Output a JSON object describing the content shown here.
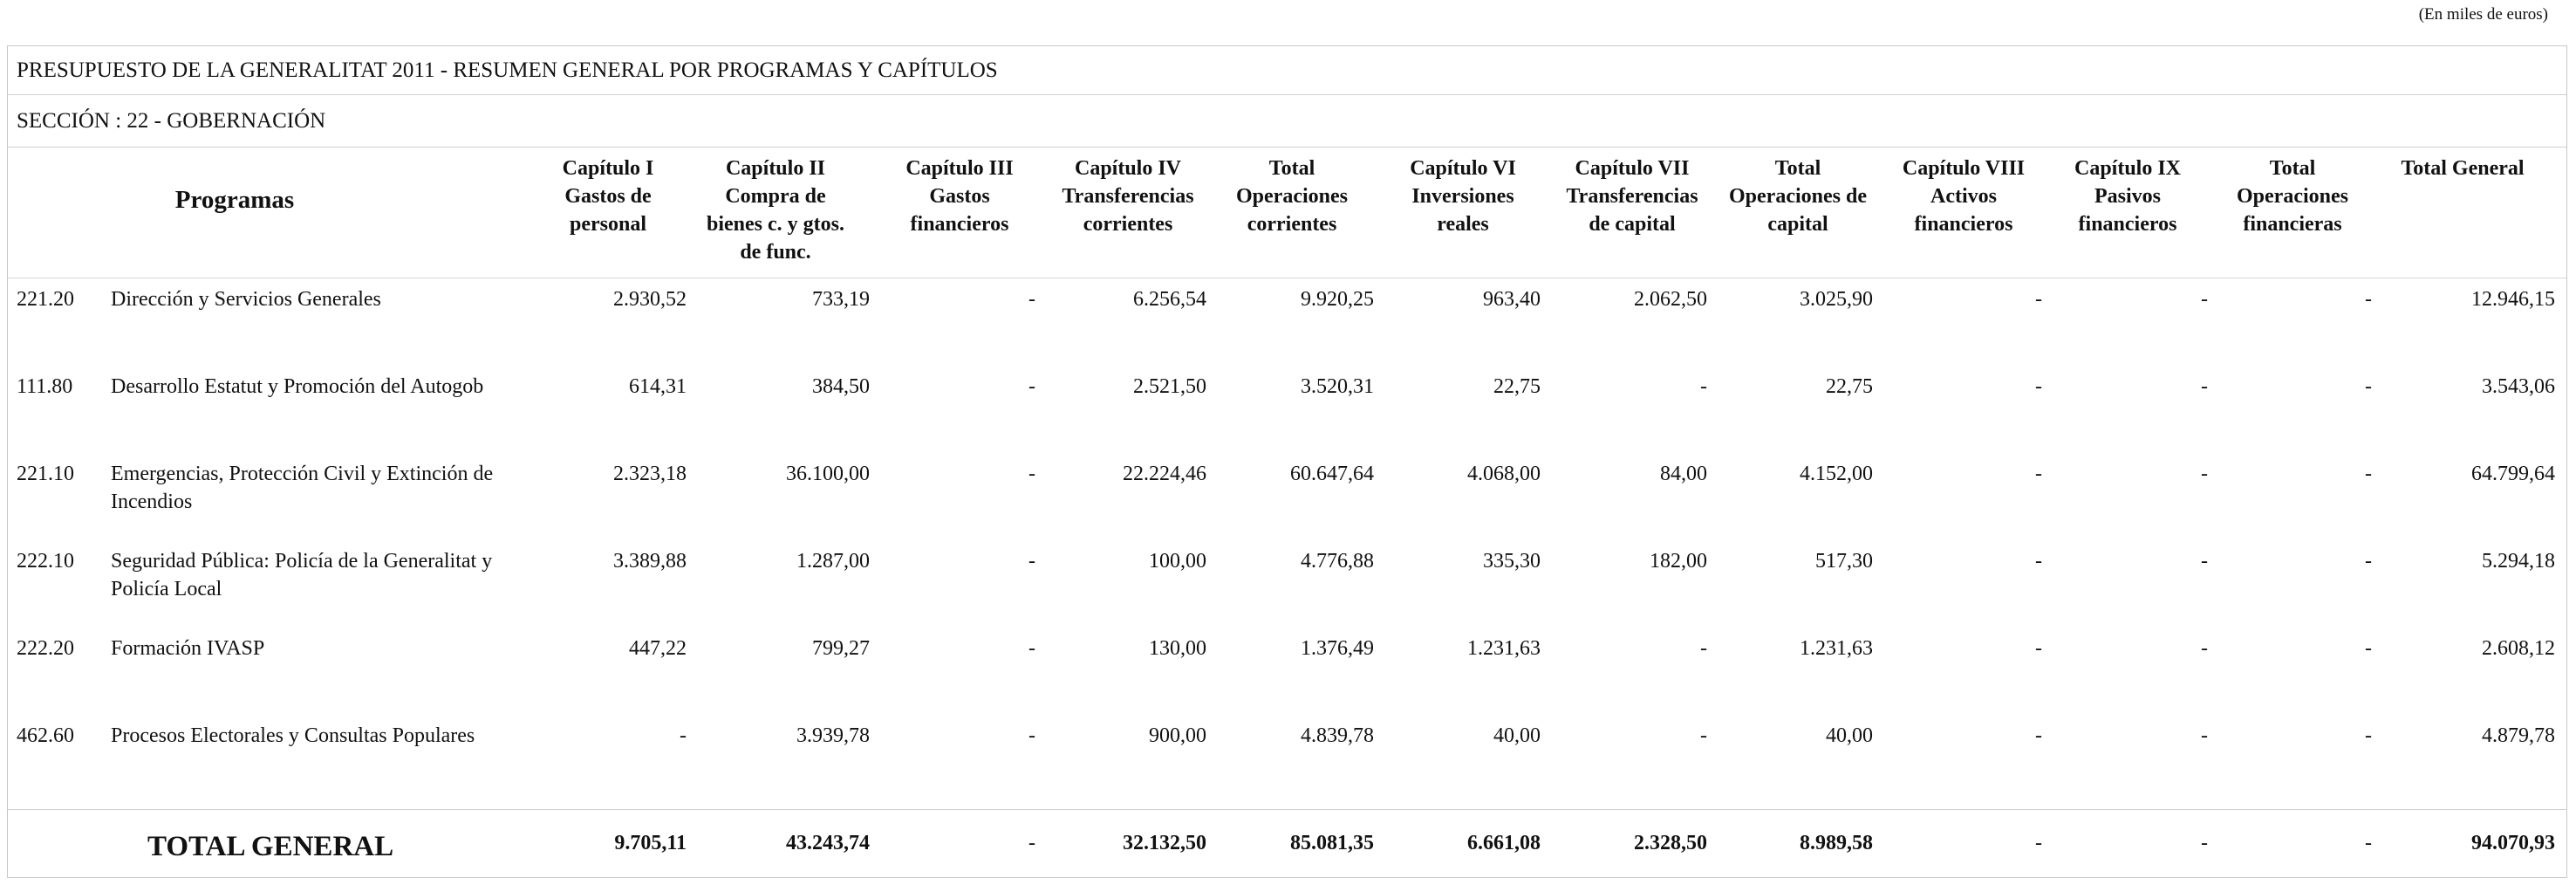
{
  "units_note": "(En miles de euros)",
  "title": "PRESUPUESTO DE LA GENERALITAT 2011 - RESUMEN GENERAL POR PROGRAMAS Y CAPÍTULOS",
  "section": "SECCIÓN : 22  -  GOBERNACIÓN",
  "programas_header": "Programas",
  "columns": [
    "Capítulo I\nGastos de\npersonal",
    "Capítulo II\nCompra de\nbienes c. y gtos.\nde func.",
    "Capítulo III\nGastos\nfinancieros",
    "Capítulo IV\nTransferencias\ncorrientes",
    "Total\nOperaciones\ncorrientes",
    "Capítulo VI\nInversiones\nreales",
    "Capítulo VII\nTransferencias\nde capital",
    "Total\nOperaciones de\ncapital",
    "Capítulo VIII\nActivos\nfinancieros",
    "Capítulo IX\nPasivos\nfinancieros",
    "Total\nOperaciones\nfinancieras",
    "Total General"
  ],
  "rows": [
    {
      "code": "221.20",
      "name": "Dirección y Servicios Generales",
      "values": [
        "2.930,52",
        "733,19",
        "-",
        "6.256,54",
        "9.920,25",
        "963,40",
        "2.062,50",
        "3.025,90",
        "-",
        "-",
        "-",
        "12.946,15"
      ]
    },
    {
      "code": "111.80",
      "name": "Desarrollo Estatut y Promoción del Autogob",
      "values": [
        "614,31",
        "384,50",
        "-",
        "2.521,50",
        "3.520,31",
        "22,75",
        "-",
        "22,75",
        "-",
        "-",
        "-",
        "3.543,06"
      ]
    },
    {
      "code": "221.10",
      "name": "Emergencias, Protección Civil y Extinción de Incendios",
      "values": [
        "2.323,18",
        "36.100,00",
        "-",
        "22.224,46",
        "60.647,64",
        "4.068,00",
        "84,00",
        "4.152,00",
        "-",
        "-",
        "-",
        "64.799,64"
      ]
    },
    {
      "code": "222.10",
      "name": "Seguridad Pública: Policía de la Generalitat y Policía Local",
      "values": [
        "3.389,88",
        "1.287,00",
        "-",
        "100,00",
        "4.776,88",
        "335,30",
        "182,00",
        "517,30",
        "-",
        "-",
        "-",
        "5.294,18"
      ]
    },
    {
      "code": "222.20",
      "name": "Formación IVASP",
      "values": [
        "447,22",
        "799,27",
        "-",
        "130,00",
        "1.376,49",
        "1.231,63",
        "-",
        "1.231,63",
        "-",
        "-",
        "-",
        "2.608,12"
      ]
    },
    {
      "code": "462.60",
      "name": "Procesos Electorales y Consultas Populares",
      "values": [
        "-",
        "3.939,78",
        "-",
        "900,00",
        "4.839,78",
        "40,00",
        "-",
        "40,00",
        "-",
        "-",
        "-",
        "4.879,78"
      ]
    }
  ],
  "total": {
    "label": "TOTAL GENERAL",
    "values": [
      "9.705,11",
      "43.243,74",
      "-",
      "32.132,50",
      "85.081,35",
      "6.661,08",
      "2.328,50",
      "8.989,58",
      "-",
      "-",
      "-",
      "94.070,93"
    ]
  }
}
